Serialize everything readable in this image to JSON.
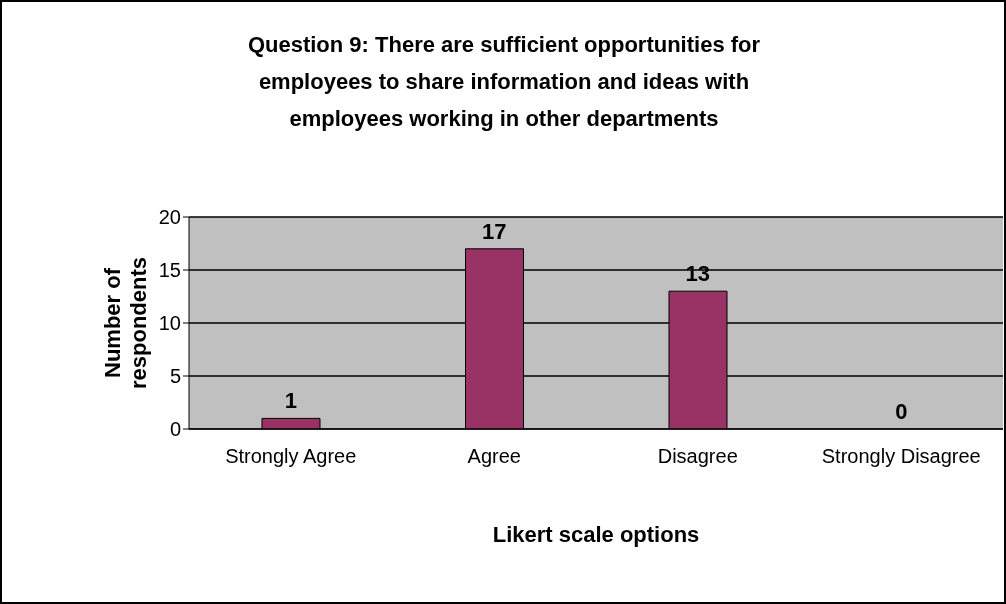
{
  "chart_data": {
    "type": "bar",
    "title": "Question 9: There are sufficient opportunities for employees to share information and ideas with employees working in other departments",
    "xlabel": "Likert scale options",
    "ylabel": "Number of respondents",
    "categories": [
      "Strongly Agree",
      "Agree",
      "Disagree",
      "Strongly Disagree"
    ],
    "values": [
      1,
      17,
      13,
      0
    ],
    "color": "#993366",
    "ylim": [
      0,
      20
    ],
    "yticks": [
      0,
      5,
      10,
      15,
      20
    ],
    "grid": "y",
    "data_labels": true,
    "legend": false
  }
}
